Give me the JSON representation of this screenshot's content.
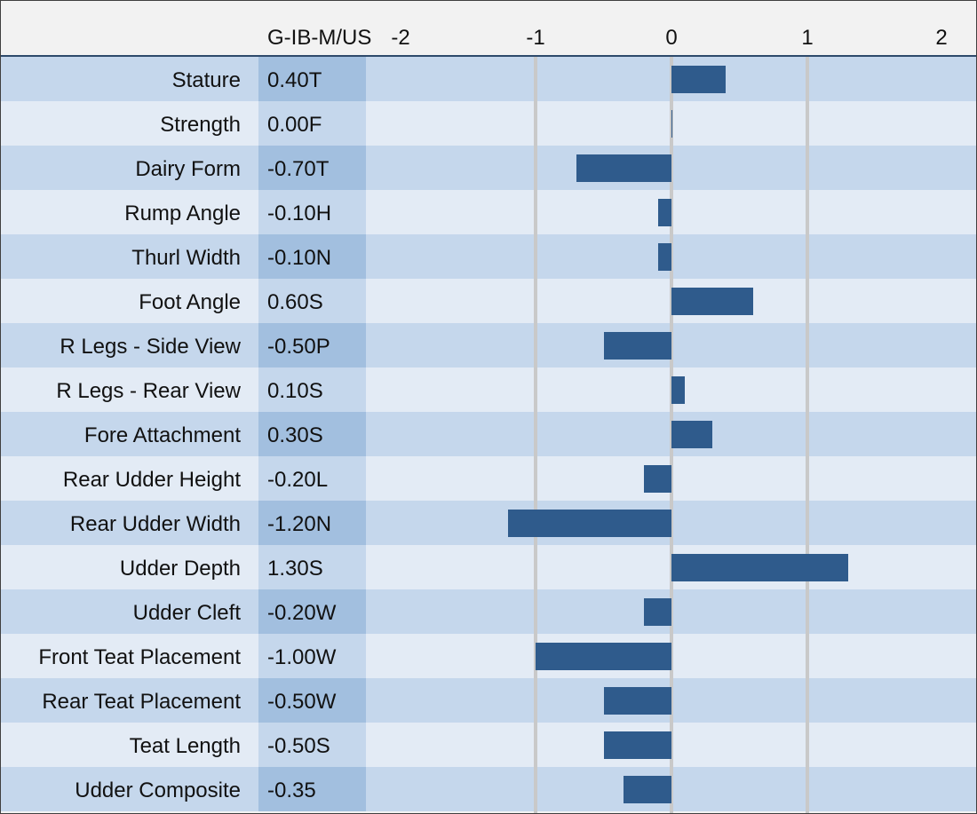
{
  "chart_data": {
    "type": "bar",
    "orientation": "horizontal",
    "column_title": "G-IB-M/US",
    "x_ticks": [
      "-2",
      "-1",
      "0",
      "1",
      "2"
    ],
    "xlim": [
      -2,
      2
    ],
    "grid": true,
    "rows": [
      {
        "label": "Stature",
        "display": "0.40T",
        "value": 0.4
      },
      {
        "label": "Strength",
        "display": "0.00F",
        "value": 0.0
      },
      {
        "label": "Dairy Form",
        "display": "-0.70T",
        "value": -0.7
      },
      {
        "label": "Rump Angle",
        "display": "-0.10H",
        "value": -0.1
      },
      {
        "label": "Thurl Width",
        "display": "-0.10N",
        "value": -0.1
      },
      {
        "label": "Foot Angle",
        "display": "0.60S",
        "value": 0.6
      },
      {
        "label": "R Legs - Side View",
        "display": "-0.50P",
        "value": -0.5
      },
      {
        "label": "R Legs - Rear View",
        "display": "0.10S",
        "value": 0.1
      },
      {
        "label": "Fore Attachment",
        "display": "0.30S",
        "value": 0.3
      },
      {
        "label": "Rear Udder Height",
        "display": "-0.20L",
        "value": -0.2
      },
      {
        "label": "Rear Udder Width",
        "display": "-1.20N",
        "value": -1.2
      },
      {
        "label": "Udder Depth",
        "display": "1.30S",
        "value": 1.3
      },
      {
        "label": "Udder Cleft",
        "display": "-0.20W",
        "value": -0.2
      },
      {
        "label": "Front Teat Placement",
        "display": "-1.00W",
        "value": -1.0
      },
      {
        "label": "Rear Teat Placement",
        "display": "-0.50W",
        "value": -0.5
      },
      {
        "label": "Teat Length",
        "display": "-0.50S",
        "value": -0.5
      },
      {
        "label": "Udder Composite",
        "display": "-0.35",
        "value": -0.35
      }
    ]
  },
  "colors": {
    "bar": "#2f5b8c",
    "row_dark": "#c5d7ec",
    "row_light": "#e3ebf5",
    "gridline": "#c9c9c9"
  }
}
